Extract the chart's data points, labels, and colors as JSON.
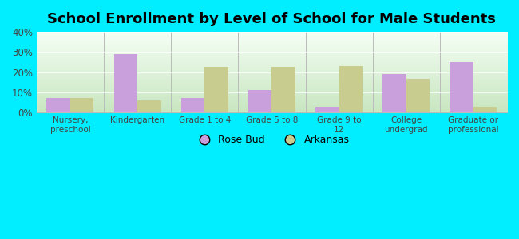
{
  "title": "School Enrollment by Level of School for Male Students",
  "categories": [
    "Nursery,\npreschool",
    "Kindergarten",
    "Grade 1 to 4",
    "Grade 5 to 8",
    "Grade 9 to\n12",
    "College\nundergrad",
    "Graduate or\nprofessional"
  ],
  "rose_bud": [
    7,
    29,
    7,
    11,
    3,
    19,
    25
  ],
  "arkansas": [
    7,
    6,
    22.5,
    22.5,
    23,
    16.5,
    3
  ],
  "rose_bud_color": "#c9a0dc",
  "arkansas_color": "#c8cc8e",
  "background_outer": "#00eeff",
  "bg_top_color": "#f5fff5",
  "bg_bottom_color": "#c8e6c0",
  "ylim": [
    0,
    40
  ],
  "yticks": [
    0,
    10,
    20,
    30,
    40
  ],
  "ytick_labels": [
    "0%",
    "10%",
    "20%",
    "30%",
    "40%"
  ],
  "title_fontsize": 13,
  "legend_labels": [
    "Rose Bud",
    "Arkansas"
  ],
  "bar_width": 0.35,
  "separator_color": "#bbbbbb"
}
